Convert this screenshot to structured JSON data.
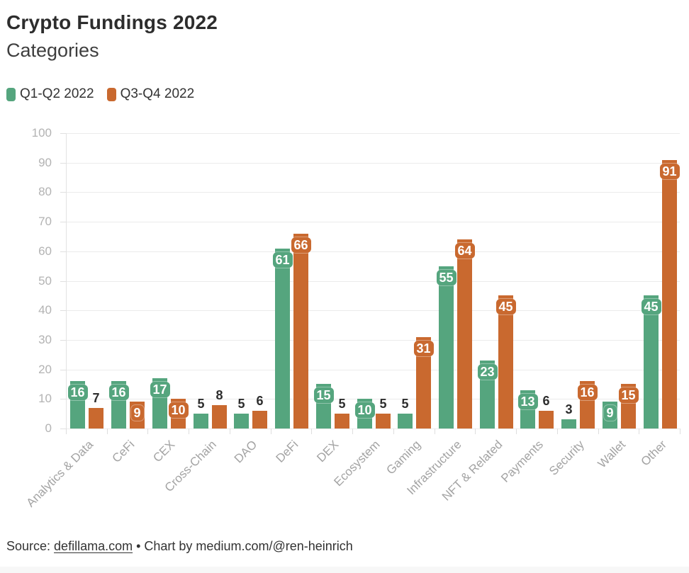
{
  "header": {
    "title": "Crypto Fundings 2022",
    "subtitle": "Categories"
  },
  "footer": {
    "source_prefix": "Source: ",
    "source_link": "defillama.com",
    "separator": " • ",
    "credit": "Chart by medium.com/@ren-heinrich"
  },
  "chart_data": {
    "type": "bar",
    "title": "Crypto Fundings 2022",
    "subtitle": "Categories",
    "categories": [
      "Analytics & Data",
      "CeFi",
      "CEX",
      "Cross-Chain",
      "DAO",
      "DeFi",
      "DEX",
      "Ecosystem",
      "Gaming",
      "Infrastructure",
      "NFT & Related",
      "Payments",
      "Security",
      "Wallet",
      "Other"
    ],
    "series": [
      {
        "name": "Q1-Q2 2022",
        "color": "#55a57e",
        "values": [
          16,
          16,
          17,
          5,
          5,
          61,
          15,
          10,
          5,
          55,
          23,
          13,
          3,
          9,
          45
        ]
      },
      {
        "name": "Q3-Q4 2022",
        "color": "#c9692f",
        "values": [
          7,
          9,
          10,
          8,
          6,
          66,
          5,
          5,
          31,
          64,
          45,
          6,
          16,
          15,
          91
        ]
      }
    ],
    "xlabel": "",
    "ylabel": "",
    "ylim": [
      0,
      100
    ],
    "yticks": [
      0,
      10,
      20,
      30,
      40,
      50,
      60,
      70,
      80,
      90,
      100
    ],
    "grid": true,
    "legend_position": "top-left",
    "inside_label_min": 9,
    "label_inside_color": "#ffffff",
    "label_above_color": "#2d2d2d",
    "gridline_color": "#ebebeb",
    "axis_color": "#e2e2e2",
    "tick_label_color": "#b3b3b3",
    "category_label_color": "#a3a3a3"
  }
}
